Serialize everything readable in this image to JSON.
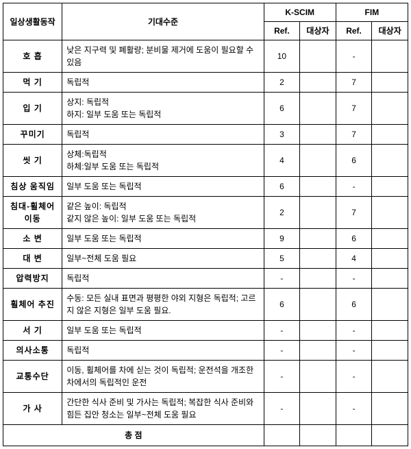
{
  "headers": {
    "activity": "일상생활동작",
    "expectation": "기대수준",
    "kscim": "K-SCIM",
    "fim": "FIM",
    "ref": "Ref.",
    "subject": "대상자",
    "total": "총  점"
  },
  "rows": [
    {
      "activity": "호  흡",
      "expectation": "낮은 지구력 및 폐활량; 분비물 제거에 도움이 필요할 수 있음",
      "kscim_ref": "10",
      "kscim_subj": "",
      "fim_ref": "-",
      "fim_subj": ""
    },
    {
      "activity": "먹  기",
      "expectation": "독립적",
      "kscim_ref": "2",
      "kscim_subj": "",
      "fim_ref": "7",
      "fim_subj": ""
    },
    {
      "activity": "입  기",
      "expectation": "상지: 독립적\n하지: 일부 도움 또는 독립적",
      "kscim_ref": "6",
      "kscim_subj": "",
      "fim_ref": "7",
      "fim_subj": ""
    },
    {
      "activity": "꾸미기",
      "expectation": "독립적",
      "kscim_ref": "3",
      "kscim_subj": "",
      "fim_ref": "7",
      "fim_subj": ""
    },
    {
      "activity": "씻  기",
      "expectation": "상체:독립적\n하체:일부 도움 또는 독립적",
      "kscim_ref": "4",
      "kscim_subj": "",
      "fim_ref": "6",
      "fim_subj": ""
    },
    {
      "activity": "침상 움직임",
      "expectation": "일부 도움 또는 독립적",
      "kscim_ref": "6",
      "kscim_subj": "",
      "fim_ref": "-",
      "fim_subj": ""
    },
    {
      "activity": "침대-휠체어 이동",
      "expectation": "같은 높이: 독립적\n같지 않은 높이: 일부 도움 또는 독립적",
      "kscim_ref": "2",
      "kscim_subj": "",
      "fim_ref": "7",
      "fim_subj": ""
    },
    {
      "activity": "소  변",
      "expectation": "일부 도움 또는 독립적",
      "kscim_ref": "9",
      "kscim_subj": "",
      "fim_ref": "6",
      "fim_subj": ""
    },
    {
      "activity": "대  변",
      "expectation": "일부~전체 도움 필요",
      "kscim_ref": "5",
      "kscim_subj": "",
      "fim_ref": "4",
      "fim_subj": ""
    },
    {
      "activity": "압력방지",
      "expectation": "독립적",
      "kscim_ref": "-",
      "kscim_subj": "",
      "fim_ref": "-",
      "fim_subj": ""
    },
    {
      "activity": "휠체어 추진",
      "expectation": "수동: 모든 실내 표면과 평평한 야외 지형은 독립적; 고르지 않은 지형은 일부 도움 필요.",
      "kscim_ref": "6",
      "kscim_subj": "",
      "fim_ref": "6",
      "fim_subj": ""
    },
    {
      "activity": "서  기",
      "expectation": "일부 도움 또는 독립적",
      "kscim_ref": "-",
      "kscim_subj": "",
      "fim_ref": "-",
      "fim_subj": ""
    },
    {
      "activity": "의사소통",
      "expectation": "독립적",
      "kscim_ref": "-",
      "kscim_subj": "",
      "fim_ref": "-",
      "fim_subj": ""
    },
    {
      "activity": "교통수단",
      "expectation": "이동, 휠체어를 차에 싣는 것이 독립적; 운전석을 개조한 차에서의 독립적인 운전",
      "kscim_ref": "-",
      "kscim_subj": "",
      "fim_ref": "-",
      "fim_subj": ""
    },
    {
      "activity": "가  사",
      "expectation": "간단한 식사 준비 및 가사는 독립적; 복잡한 식사 준비와 힘든 집안 청소는 일부~전체 도움 필요",
      "kscim_ref": "-",
      "kscim_subj": "",
      "fim_ref": "-",
      "fim_subj": ""
    }
  ]
}
